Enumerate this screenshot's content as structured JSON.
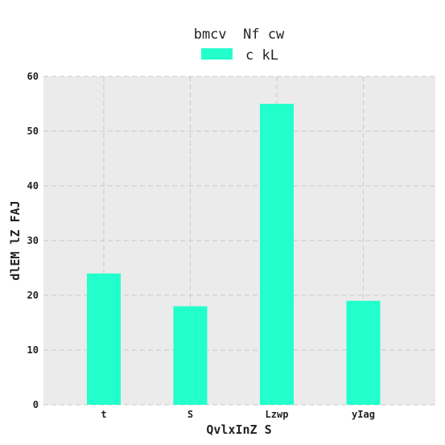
{
  "chart_data": {
    "type": "bar",
    "title": "bmcv  Nf cw",
    "xlabel": "QvlxInZ S",
    "ylabel": "dlEM lZ FAJ",
    "categories": [
      "t",
      "S",
      "Lzwp",
      "yIag"
    ],
    "series": [
      {
        "name": "c kL",
        "values": [
          24,
          18,
          55,
          19
        ],
        "color": "#22ffcc"
      }
    ],
    "ylim": [
      0,
      60
    ],
    "yticks": [
      0,
      10,
      20,
      30,
      40,
      50,
      60
    ],
    "grid": true,
    "legend_position": "top-center",
    "background_color": "#ebebeb"
  }
}
